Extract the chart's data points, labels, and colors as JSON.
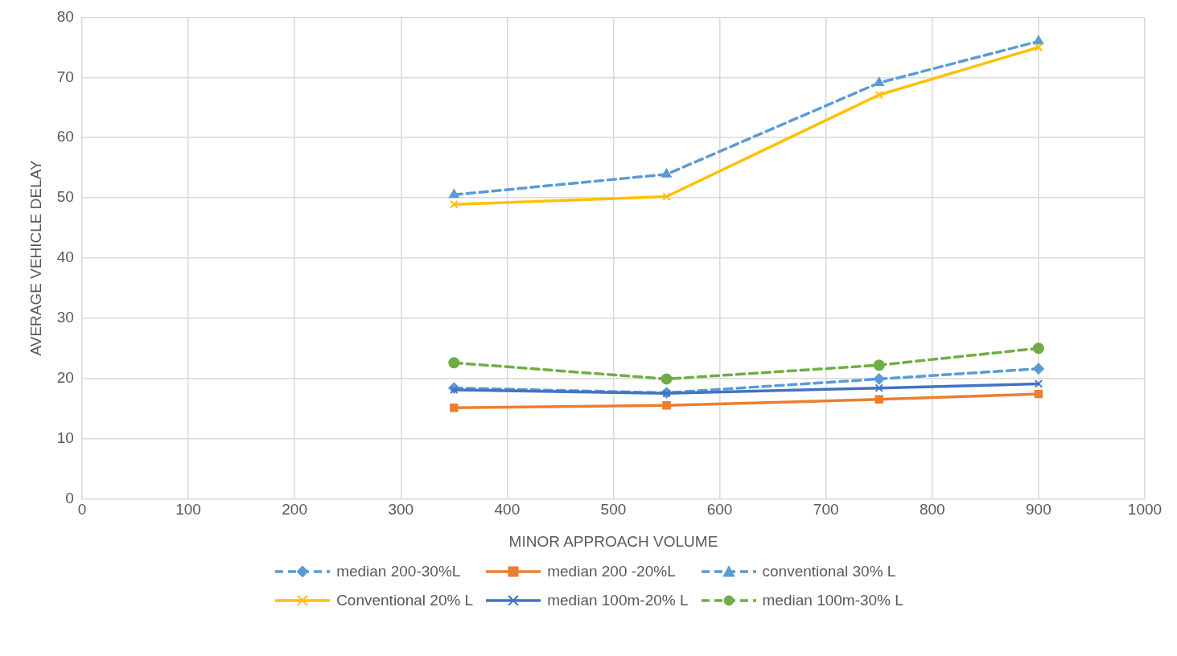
{
  "chart_data": {
    "type": "line",
    "xlabel": "MINOR APPROACH VOLUME",
    "ylabel": "AVERAGE VEHICLE DELAY",
    "x": [
      350,
      550,
      750,
      900
    ],
    "series": [
      {
        "name": "median 200-30%L",
        "color": "#5b9bd5",
        "marker": "diamond",
        "line_style": "dashed",
        "values": [
          18.4,
          17.6,
          19.9,
          21.6
        ]
      },
      {
        "name": "median 200 -20%L",
        "color": "#ed7d31",
        "marker": "square",
        "line_style": "solid",
        "values": [
          15.1,
          15.5,
          16.5,
          17.4
        ]
      },
      {
        "name": "conventional 30% L",
        "color": "#5b9bd5",
        "marker": "triangle",
        "line_style": "dashed",
        "values": [
          50.5,
          53.9,
          69.1,
          76.0
        ]
      },
      {
        "name": "Conventional 20% L",
        "color": "#ffc000",
        "marker": "cross",
        "line_style": "solid",
        "values": [
          48.9,
          50.2,
          67.1,
          75.0
        ]
      },
      {
        "name": "median 100m-20% L",
        "color": "#4472c4",
        "marker": "cross",
        "line_style": "solid",
        "values": [
          18.1,
          17.5,
          18.4,
          19.1
        ]
      },
      {
        "name": "median 100m-30% L",
        "color": "#70ad47",
        "marker": "circle",
        "line_style": "dashed",
        "values": [
          22.6,
          19.9,
          22.2,
          25.0
        ]
      }
    ],
    "xlim": [
      0,
      1000
    ],
    "xticks": [
      0,
      100,
      200,
      300,
      400,
      500,
      600,
      700,
      800,
      900,
      1000
    ],
    "ylim": [
      0,
      80
    ],
    "yticks": [
      0,
      10,
      20,
      30,
      40,
      50,
      60,
      70,
      80
    ],
    "grid": true,
    "legend": "bottom"
  }
}
